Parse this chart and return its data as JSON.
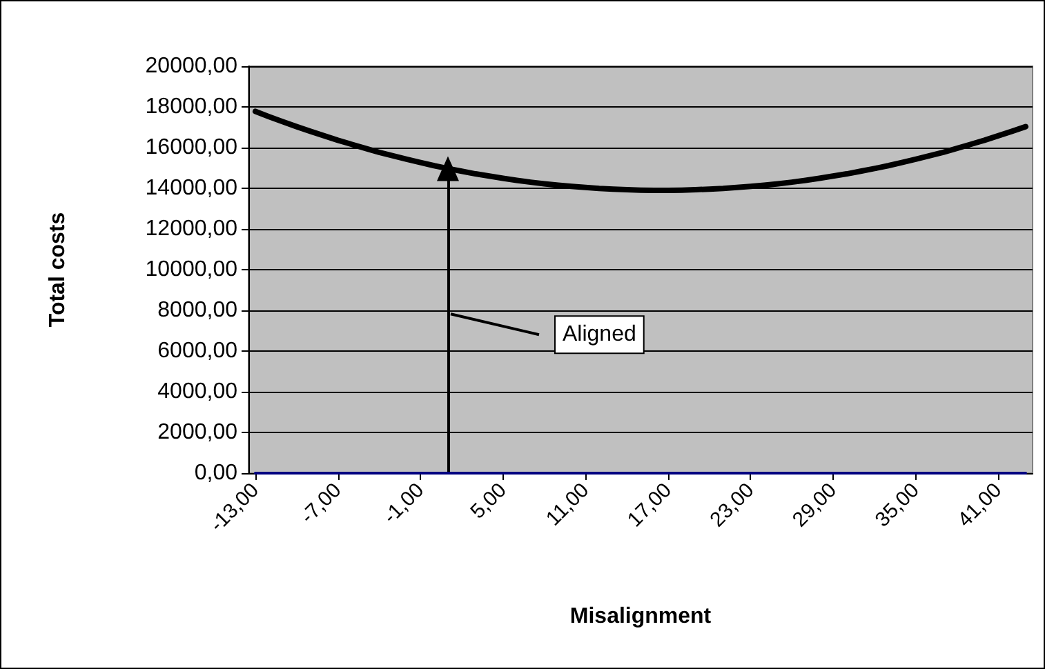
{
  "chart_data": {
    "type": "line",
    "xlabel": "Misalignment",
    "ylabel": "Total costs",
    "x": [
      -13,
      -12,
      -11,
      -10,
      -9,
      -8,
      -7,
      -6,
      -5,
      -4,
      -3,
      -2,
      -1,
      0,
      1,
      2,
      3,
      4,
      5,
      6,
      7,
      8,
      9,
      10,
      11,
      12,
      13,
      14,
      15,
      16,
      17,
      18,
      19,
      20,
      21,
      22,
      23,
      24,
      25,
      26,
      27,
      28,
      29,
      30,
      31,
      32,
      33,
      34,
      35,
      36,
      37,
      38,
      39,
      40,
      41,
      42,
      43
    ],
    "series": [
      {
        "color": "#000000",
        "values": [
          17780,
          17520,
          17270,
          17030,
          16800,
          16580,
          16360,
          16160,
          15960,
          15770,
          15600,
          15430,
          15270,
          15110,
          14970,
          14840,
          14710,
          14600,
          14490,
          14390,
          14300,
          14220,
          14150,
          14090,
          14040,
          13990,
          13960,
          13930,
          13910,
          13900,
          13900,
          13910,
          13930,
          13960,
          13990,
          14040,
          14090,
          14150,
          14220,
          14300,
          14390,
          14490,
          14600,
          14710,
          14840,
          14970,
          15110,
          15270,
          15430,
          15600,
          15770,
          15960,
          16160,
          16360,
          16580,
          16800,
          17030
        ]
      },
      {
        "color": "#000080",
        "values": [
          0,
          0,
          0,
          0,
          0,
          0,
          0,
          0,
          0,
          0,
          0,
          0,
          0,
          0,
          0,
          0,
          0,
          0,
          0,
          0,
          0,
          0,
          0,
          0,
          0,
          0,
          0,
          0,
          0,
          0,
          0,
          0,
          0,
          0,
          0,
          0,
          0,
          0,
          0,
          0,
          0,
          0,
          0,
          0,
          0,
          0,
          0,
          0,
          0,
          0,
          0,
          0,
          0,
          0,
          0,
          0,
          0
        ]
      }
    ],
    "xlim": [
      -13.5,
      43.5
    ],
    "xticks": [
      {
        "value": -13,
        "label": "-13,00"
      },
      {
        "value": -7,
        "label": "-7,00"
      },
      {
        "value": -1,
        "label": "-1,00"
      },
      {
        "value": 5,
        "label": "5,00"
      },
      {
        "value": 11,
        "label": "11,00"
      },
      {
        "value": 17,
        "label": "17,00"
      },
      {
        "value": 23,
        "label": "23,00"
      },
      {
        "value": 29,
        "label": "29,00"
      },
      {
        "value": 35,
        "label": "35,00"
      },
      {
        "value": 41,
        "label": "41,00"
      }
    ],
    "ylim": [
      0,
      20000
    ],
    "yticks": [
      {
        "value": 0,
        "label": "0,00"
      },
      {
        "value": 2000,
        "label": "2000,00"
      },
      {
        "value": 4000,
        "label": "4000,00"
      },
      {
        "value": 6000,
        "label": "6000,00"
      },
      {
        "value": 8000,
        "label": "8000,00"
      },
      {
        "value": 10000,
        "label": "10000,00"
      },
      {
        "value": 12000,
        "label": "12000,00"
      },
      {
        "value": 14000,
        "label": "14000,00"
      },
      {
        "value": 16000,
        "label": "16000,00"
      },
      {
        "value": 18000,
        "label": "18000,00"
      },
      {
        "value": 20000,
        "label": "20000,00"
      }
    ],
    "grid": "y",
    "marker": "none",
    "line_style": "solid",
    "ref_lines": [
      {
        "axis": "x",
        "value": 1,
        "label": "Aligned",
        "color": "#000000"
      }
    ]
  }
}
